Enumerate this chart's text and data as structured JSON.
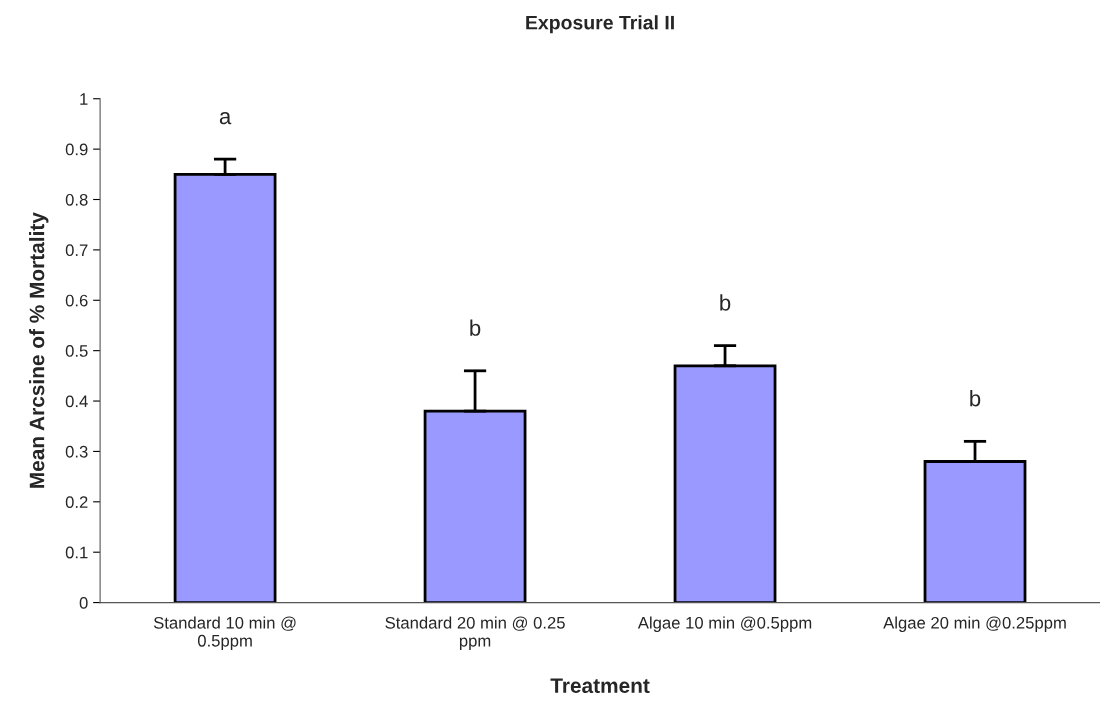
{
  "chart_data": {
    "type": "bar",
    "title": "Exposure Trial II",
    "xlabel": "Treatment",
    "ylabel": "Mean Arcsine of % Mortality",
    "categories": [
      "Standard 10 min @\n0.5ppm",
      "Standard 20 min @ 0.25\nppm",
      "Algae 10 min @0.5ppm",
      "Algae 20 min @0.25ppm"
    ],
    "values": [
      0.85,
      0.38,
      0.47,
      0.28
    ],
    "errors": [
      [
        0.85,
        0.88
      ],
      [
        0.38,
        0.46
      ],
      [
        0.47,
        0.51
      ],
      [
        0.28,
        0.32
      ]
    ],
    "color": "#9999ff",
    "ylim": [
      0,
      1
    ],
    "yticks": [
      0,
      0.1,
      0.2,
      0.3,
      0.4,
      0.5,
      0.6,
      0.7,
      0.8,
      0.9,
      1
    ],
    "annotations": [
      "a",
      "b",
      "b",
      "b"
    ],
    "grid": false,
    "legend": false
  }
}
